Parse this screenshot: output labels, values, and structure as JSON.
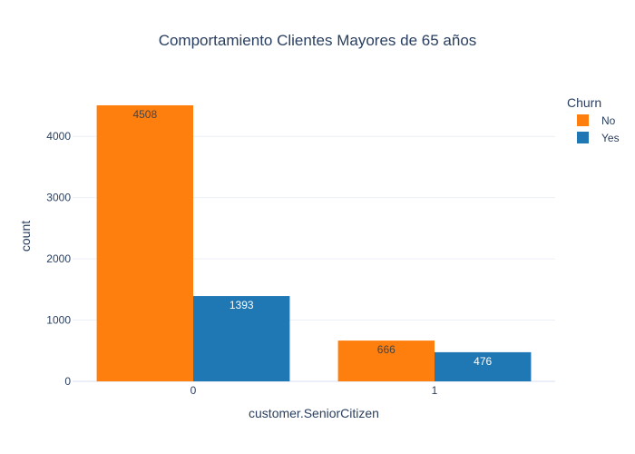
{
  "chart_data": {
    "type": "bar",
    "title": "Comportamiento Clientes Mayores de 65 años",
    "xlabel": "customer.SeniorCitizen",
    "ylabel": "count",
    "categories": [
      "0",
      "1"
    ],
    "ylim": [
      0,
      4745
    ],
    "yticks": [
      0,
      1000,
      2000,
      3000,
      4000
    ],
    "ytick_labels": [
      "0",
      "1000",
      "2000",
      "3000",
      "4000"
    ],
    "grid": true,
    "legend": {
      "title": "Churn",
      "placement": "top-right"
    },
    "series": [
      {
        "name": "No",
        "color": "#ff7f0e",
        "values": [
          4508,
          666
        ],
        "labels": [
          "4508",
          "666"
        ],
        "label_color": "#444444"
      },
      {
        "name": "Yes",
        "color": "#1f77b4",
        "values": [
          1393,
          476
        ],
        "labels": [
          "1393",
          "476"
        ],
        "label_color": "#ffffff"
      }
    ]
  }
}
